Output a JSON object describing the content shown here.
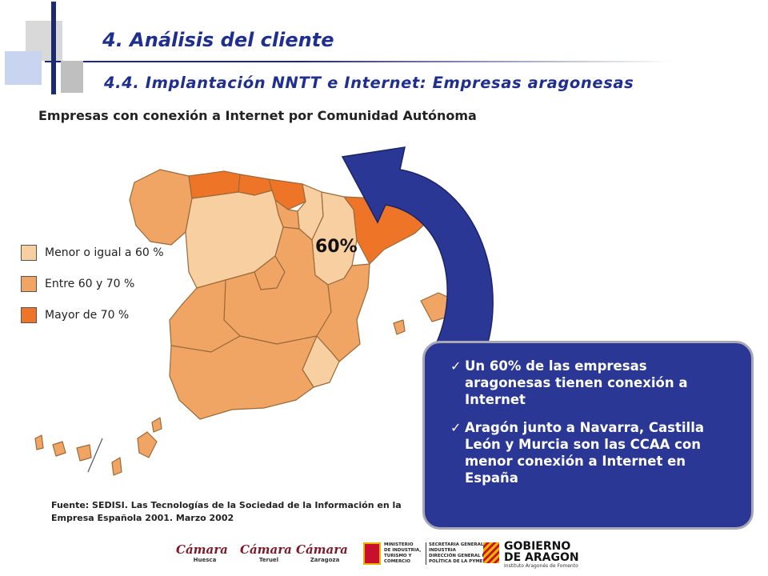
{
  "header": {
    "title": "4. Análisis del cliente",
    "subtitle": "4.4. Implantación NNTT e Internet: Empresas aragonesas"
  },
  "map": {
    "title": "Empresas con conexión a Internet por Comunidad Autónoma",
    "highlight_value": "60%",
    "legend": [
      {
        "label": "Menor o igual a 60 %",
        "color": "#f8cfa0"
      },
      {
        "label": "Entre 60 y  70 %",
        "color": "#f1a564"
      },
      {
        "label": "Mayor de 70 %",
        "color": "#ee7528"
      }
    ],
    "arrow_color": "#2b3795"
  },
  "info_box": {
    "bullets": [
      "Un 60% de las empresas aragonesas tienen conexión a Internet",
      "Aragón junto a Navarra, Castilla León y Murcia son las CCAA con menor conexión a Internet en España"
    ]
  },
  "source": "Fuente: SEDISI. Las Tecnologías de la Sociedad de la Información en la Empresa Española 2001. Marzo 2002",
  "logos": {
    "camaras": [
      {
        "word": "Cámara",
        "city": "Huesca"
      },
      {
        "word": "Cámara",
        "city": "Teruel"
      },
      {
        "word": "Cámara",
        "city": "Zaragoza"
      }
    ],
    "ministerio": [
      "MINISTERIO",
      "DE INDUSTRIA,",
      "TURISMO Y",
      "COMERCIO"
    ],
    "secretaria": [
      "SECRETARIA GENERAL DE",
      "INDUSTRIA",
      "DIRECCIÓN GENERAL DE",
      "POLÍTICA DE LA PYME"
    ],
    "gobierno": [
      "GOBIERNO",
      "DE ARAGON"
    ],
    "gobierno_sub": "Instituto Aragonés de Fomento"
  }
}
